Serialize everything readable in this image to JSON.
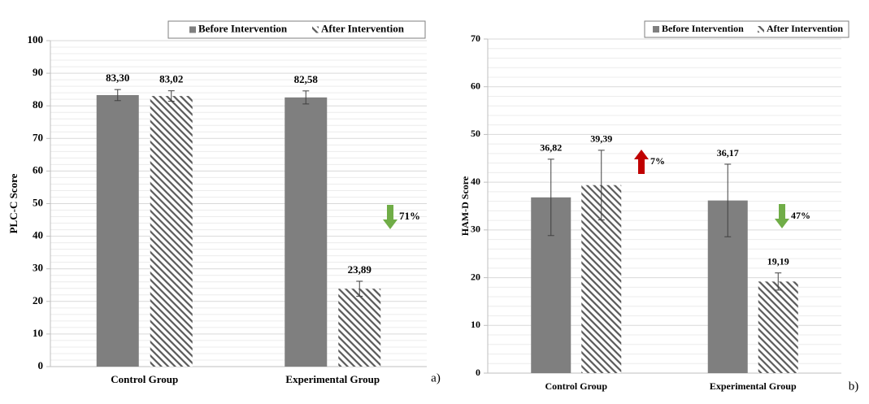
{
  "chart_data": [
    {
      "type": "bar",
      "y_label": "PLC-C Score",
      "panel_label": "a)",
      "categories": [
        "Control Group",
        "Experimental Group"
      ],
      "series": [
        {
          "name": "Before Intervention",
          "color": "#7f7f7f",
          "pattern": "solid",
          "values": [
            83.3,
            82.58
          ],
          "value_labels": [
            "83,30",
            "82,58"
          ],
          "errors": [
            1.7,
            2.0
          ]
        },
        {
          "name": "After Intervention",
          "color": "#595959",
          "pattern": "hatch",
          "values": [
            83.02,
            23.89
          ],
          "value_labels": [
            "83,02",
            "23,89"
          ],
          "errors": [
            1.6,
            2.3
          ]
        }
      ],
      "ylim": [
        0,
        100
      ],
      "yticks": [
        0,
        10,
        20,
        30,
        40,
        50,
        60,
        70,
        80,
        90,
        100
      ],
      "grid": true,
      "minor_grid": true,
      "legend": "top-right",
      "annotations": [
        {
          "text": "71%",
          "direction": "down",
          "color": "#70ad47"
        }
      ]
    },
    {
      "type": "bar",
      "y_label": "HAM-D Score",
      "panel_label": "b)",
      "categories": [
        "Control Group",
        "Experimental Group"
      ],
      "series": [
        {
          "name": "Before Intervention",
          "color": "#7f7f7f",
          "pattern": "solid",
          "values": [
            36.82,
            36.17
          ],
          "value_labels": [
            "36,82",
            "36,17"
          ],
          "errors": [
            8.0,
            7.6
          ]
        },
        {
          "name": "After Intervention",
          "color": "#595959",
          "pattern": "hatch",
          "values": [
            39.39,
            19.19
          ],
          "value_labels": [
            "39,39",
            "19,19"
          ],
          "errors": [
            7.3,
            1.8
          ]
        }
      ],
      "ylim": [
        0,
        70
      ],
      "yticks": [
        0,
        10,
        20,
        30,
        40,
        50,
        60,
        70
      ],
      "grid": true,
      "minor_grid": true,
      "legend": "top-right",
      "annotations": [
        {
          "text": "7%",
          "direction": "up",
          "color": "#c00000"
        },
        {
          "text": "47%",
          "direction": "down",
          "color": "#70ad47"
        }
      ]
    }
  ]
}
